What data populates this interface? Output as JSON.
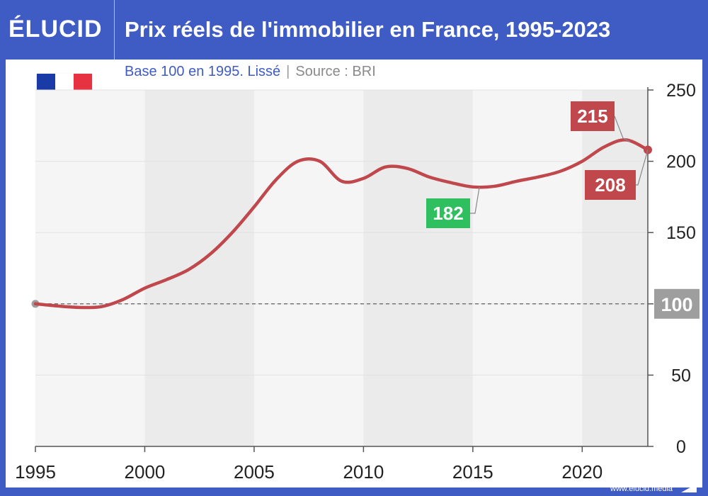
{
  "header": {
    "brand": "ÉLUCID",
    "title": "Prix réels de l'immobilier en France, 1995-2023"
  },
  "subtitle": {
    "base": "Base 100 en 1995. Lissé",
    "separator": "|",
    "source": "Source : BRI"
  },
  "footer": {
    "url": "www.elucid.media"
  },
  "colors": {
    "brand_blue": "#3f5bc4",
    "line_red": "#c0484c",
    "low_green": "#2fbf5f",
    "baseline_grey": "#9e9e9e"
  },
  "chart_data": {
    "type": "line",
    "title": "Prix réels de l'immobilier en France, 1995-2023",
    "subtitle": "Base 100 en 1995. Lissé",
    "source": "Source : BRI",
    "xlabel": "",
    "ylabel": "",
    "xlim": [
      1995,
      2023
    ],
    "ylim": [
      0,
      250
    ],
    "x_ticks": [
      1995,
      2000,
      2005,
      2010,
      2015,
      2020
    ],
    "y_ticks": [
      0,
      50,
      100,
      150,
      200,
      250
    ],
    "grid": true,
    "series": [
      {
        "name": "Prix réels de l'immobilier (base 100 en 1995)",
        "points": [
          [
            1995,
            100
          ],
          [
            1996,
            98.5
          ],
          [
            1997,
            97.5
          ],
          [
            1998,
            98
          ],
          [
            1999,
            103
          ],
          [
            2000,
            111
          ],
          [
            2001,
            117
          ],
          [
            2002,
            124
          ],
          [
            2003,
            135
          ],
          [
            2004,
            150
          ],
          [
            2005,
            168
          ],
          [
            2006,
            187
          ],
          [
            2007,
            200
          ],
          [
            2008,
            200
          ],
          [
            2009,
            186
          ],
          [
            2010,
            188
          ],
          [
            2011,
            196
          ],
          [
            2012,
            195
          ],
          [
            2013,
            189
          ],
          [
            2014,
            185
          ],
          [
            2015,
            182
          ],
          [
            2016,
            182.5
          ],
          [
            2017,
            186
          ],
          [
            2018,
            189
          ],
          [
            2019,
            193
          ],
          [
            2020,
            200
          ],
          [
            2021,
            210
          ],
          [
            2022,
            215
          ],
          [
            2023,
            208
          ]
        ]
      }
    ],
    "reference_line": {
      "value": 100,
      "label": "100",
      "style": "dashed"
    },
    "annotations": [
      {
        "x": 2022.2,
        "y": 215,
        "label": "215",
        "kind": "max"
      },
      {
        "x": 2023,
        "y": 208,
        "label": "208",
        "kind": "last"
      },
      {
        "x": 2015.3,
        "y": 182,
        "label": "182",
        "kind": "min"
      }
    ]
  }
}
